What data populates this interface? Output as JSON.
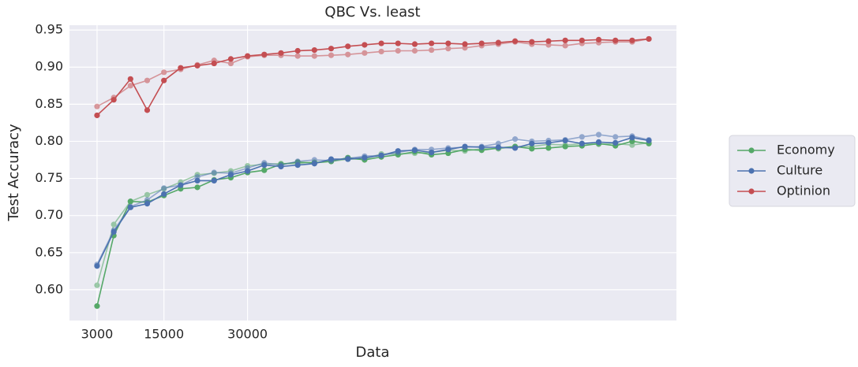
{
  "chart_data": {
    "type": "line",
    "title": "QBC Vs. least",
    "xlabel": "Data",
    "ylabel": "Test Accuracy",
    "x": [
      3000,
      6000,
      9000,
      12000,
      15000,
      18000,
      21000,
      24000,
      27000,
      30000,
      33000,
      36000,
      39000,
      42000,
      45000,
      48000,
      51000,
      54000,
      57000,
      60000,
      63000,
      66000,
      69000,
      72000,
      75000,
      78000,
      81000,
      84000,
      87000,
      90000,
      93000,
      96000,
      99000,
      102000
    ],
    "xlim": [
      -1950,
      106950
    ],
    "xticks": [
      3000,
      15000,
      30000
    ],
    "ylim": [
      0.5585,
      0.9565
    ],
    "yticks": [
      {
        "value": 0.6,
        "label": "0.60"
      },
      {
        "value": 0.65,
        "label": "0.65"
      },
      {
        "value": 0.7,
        "label": "0.70"
      },
      {
        "value": 0.75,
        "label": "0.75"
      },
      {
        "value": 0.8,
        "label": "0.80"
      },
      {
        "value": 0.85,
        "label": "0.85"
      },
      {
        "value": 0.9,
        "label": "0.90"
      },
      {
        "value": 0.95,
        "label": "0.95"
      }
    ],
    "grid": true,
    "legend": "right",
    "series": [
      {
        "name": "Economy",
        "color": "#55a868",
        "alpha": 1,
        "values": [
          0.578,
          0.673,
          0.719,
          0.718,
          0.727,
          0.736,
          0.738,
          0.748,
          0.751,
          0.758,
          0.761,
          0.769,
          0.772,
          0.771,
          0.773,
          0.778,
          0.775,
          0.779,
          0.782,
          0.786,
          0.782,
          0.784,
          0.789,
          0.788,
          0.791,
          0.793,
          0.79,
          0.791,
          0.793,
          0.794,
          0.797,
          0.794,
          0.8,
          0.797
        ]
      },
      {
        "color": "#55a868",
        "alpha": 0.55,
        "values": [
          0.606,
          0.688,
          0.719,
          0.728,
          0.736,
          0.745,
          0.755,
          0.757,
          0.76,
          0.767,
          0.769,
          0.77,
          0.77,
          0.772,
          0.773,
          0.776,
          0.776,
          0.783,
          0.783,
          0.784,
          0.785,
          0.788,
          0.787,
          0.79,
          0.79,
          0.793,
          0.793,
          0.796,
          0.795,
          0.797,
          0.796,
          0.797,
          0.795,
          0.798
        ]
      },
      {
        "name": "Culture",
        "color": "#4c72b0",
        "alpha": 1,
        "values": [
          0.632,
          0.678,
          0.711,
          0.716,
          0.729,
          0.741,
          0.747,
          0.747,
          0.755,
          0.76,
          0.768,
          0.766,
          0.768,
          0.77,
          0.776,
          0.776,
          0.778,
          0.781,
          0.787,
          0.788,
          0.785,
          0.789,
          0.793,
          0.792,
          0.792,
          0.791,
          0.797,
          0.798,
          0.801,
          0.797,
          0.799,
          0.798,
          0.805,
          0.801
        ]
      },
      {
        "color": "#4c72b0",
        "alpha": 0.55,
        "values": [
          0.634,
          0.68,
          0.712,
          0.721,
          0.737,
          0.741,
          0.752,
          0.758,
          0.757,
          0.764,
          0.771,
          0.768,
          0.773,
          0.775,
          0.774,
          0.777,
          0.78,
          0.781,
          0.785,
          0.789,
          0.789,
          0.791,
          0.792,
          0.793,
          0.797,
          0.803,
          0.8,
          0.801,
          0.802,
          0.806,
          0.809,
          0.806,
          0.807,
          0.802
        ]
      },
      {
        "name": "Optinion",
        "color": "#c44e52",
        "alpha": 1,
        "values": [
          0.835,
          0.856,
          0.884,
          0.842,
          0.882,
          0.899,
          0.902,
          0.905,
          0.911,
          0.915,
          0.917,
          0.919,
          0.922,
          0.923,
          0.925,
          0.928,
          0.93,
          0.932,
          0.932,
          0.931,
          0.932,
          0.932,
          0.931,
          0.932,
          0.933,
          0.935,
          0.934,
          0.935,
          0.936,
          0.936,
          0.937,
          0.936,
          0.936,
          0.938
        ]
      },
      {
        "color": "#c44e52",
        "alpha": 0.55,
        "values": [
          0.847,
          0.859,
          0.875,
          0.882,
          0.893,
          0.897,
          0.903,
          0.909,
          0.905,
          0.914,
          0.916,
          0.916,
          0.915,
          0.915,
          0.916,
          0.917,
          0.919,
          0.921,
          0.922,
          0.922,
          0.923,
          0.925,
          0.926,
          0.929,
          0.931,
          0.934,
          0.931,
          0.93,
          0.929,
          0.932,
          0.933,
          0.934,
          0.934,
          0.938
        ]
      }
    ]
  }
}
